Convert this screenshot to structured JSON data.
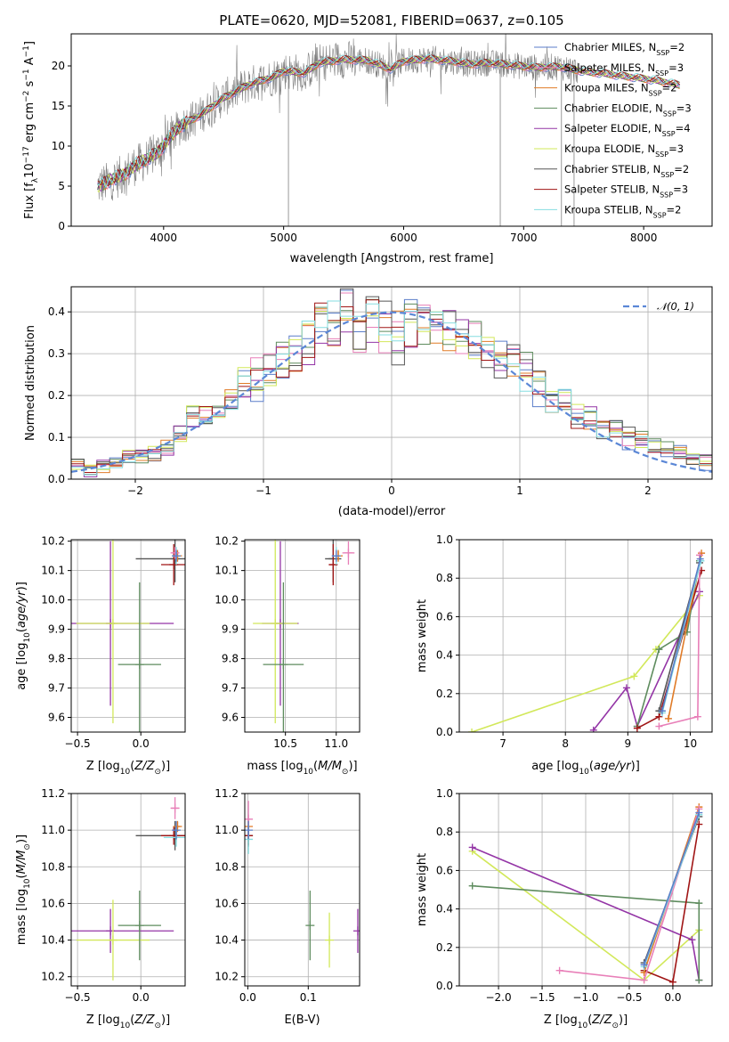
{
  "title": "PLATE=0620, MJD=52081, FIBERID=0637, z=0.105",
  "colors": {
    "Chabrier MILES": "#5b7ec9",
    "Salpeter MILES": "#e87fb8",
    "Kroupa MILES": "#e07b27",
    "Chabrier ELODIE": "#5e8c5e",
    "Salpeter ELODIE": "#9435a6",
    "Kroupa ELODIE": "#d2e85a",
    "Chabrier STELIB": "#555555",
    "Salpeter STELIB": "#a01515",
    "Kroupa STELIB": "#86dde0",
    "data": "#808080",
    "gauss": "#5b87d6"
  },
  "chart_data": [
    {
      "id": "spectrum",
      "type": "line",
      "xlabel": "wavelength [Angstrom, rest frame]",
      "ylabel": "Flux [f_λ10^-17 erg cm^-2 s^-1 A^-1]",
      "xlim": [
        3230,
        8570
      ],
      "ylim": [
        0,
        24
      ],
      "xticks": [
        4000,
        5000,
        6000,
        7000,
        8000
      ],
      "yticks": [
        0,
        5,
        10,
        15,
        20
      ],
      "grid": false,
      "legend_position": "right",
      "legend": [
        {
          "name": "Chabrier MILES",
          "nssp": 2
        },
        {
          "name": "Salpeter MILES",
          "nssp": 3
        },
        {
          "name": "Kroupa MILES",
          "nssp": 2
        },
        {
          "name": "Chabrier ELODIE",
          "nssp": 3
        },
        {
          "name": "Salpeter ELODIE",
          "nssp": 4
        },
        {
          "name": "Kroupa ELODIE",
          "nssp": 3
        },
        {
          "name": "Chabrier STELIB",
          "nssp": 2
        },
        {
          "name": "Salpeter STELIB",
          "nssp": 3
        },
        {
          "name": "Kroupa STELIB",
          "nssp": 2
        }
      ],
      "model_curve": {
        "x": [
          3450,
          3550,
          3650,
          3750,
          3850,
          3950,
          4050,
          4150,
          4300,
          4500,
          4700,
          4861,
          4900,
          5000,
          5175,
          5300,
          5500,
          5700,
          5893,
          6000,
          6200,
          6400,
          6563,
          6700,
          6900,
          7100,
          7300,
          7500,
          7700,
          7900,
          8100,
          8300
        ],
        "y": [
          5.0,
          5.6,
          6.3,
          7.5,
          8.2,
          9.3,
          11.0,
          12.6,
          13.8,
          16.0,
          17.6,
          18.4,
          18.5,
          19.4,
          19.1,
          20.4,
          20.8,
          20.7,
          19.6,
          20.6,
          20.9,
          20.6,
          20.2,
          20.4,
          20.1,
          19.8,
          19.9,
          19.3,
          19.0,
          18.6,
          18.2,
          17.6
        ]
      }
    },
    {
      "id": "residuals",
      "type": "bar",
      "xlabel": "(data-model)/error",
      "ylabel": "Normed distribution",
      "xlim": [
        -2.5,
        2.5
      ],
      "ylim": [
        0,
        0.46
      ],
      "xticks": [
        -2,
        -1,
        0,
        1,
        2
      ],
      "yticks": [
        0.0,
        0.1,
        0.2,
        0.3,
        0.4
      ],
      "grid": true,
      "legend_position": "top-right",
      "gauss_label": "N(0,1)",
      "hist_mean": [
        0.03,
        0.02,
        0.03,
        0.04,
        0.05,
        0.06,
        0.06,
        0.08,
        0.11,
        0.15,
        0.14,
        0.16,
        0.18,
        0.22,
        0.24,
        0.26,
        0.28,
        0.3,
        0.33,
        0.36,
        0.37,
        0.39,
        0.35,
        0.37,
        0.36,
        0.34,
        0.36,
        0.37,
        0.34,
        0.35,
        0.33,
        0.33,
        0.3,
        0.28,
        0.27,
        0.25,
        0.22,
        0.2,
        0.18,
        0.16,
        0.15,
        0.13,
        0.12,
        0.1,
        0.09,
        0.08,
        0.07,
        0.06,
        0.05,
        0.04
      ]
    },
    {
      "id": "age-vs-Z",
      "type": "scatter",
      "xlabel": "Z [log10(Z/Z⊙)]",
      "ylabel": "age  [log10(age/yr)]",
      "xlim": [
        -0.55,
        0.35
      ],
      "ylim": [
        9.55,
        10.205
      ],
      "xticks": [
        -0.5,
        0.0
      ],
      "yticks": [
        9.6,
        9.7,
        9.8,
        9.9,
        10.0,
        10.1,
        10.2
      ],
      "grid": true,
      "points": [
        {
          "model": "Salpeter ELODIE",
          "x": -0.24,
          "y": 9.92,
          "xerr": 0.5,
          "yerr": 0.28
        },
        {
          "model": "Kroupa ELODIE",
          "x": -0.22,
          "y": 9.92,
          "xerr": 0.29,
          "yerr": 0.34
        },
        {
          "model": "Chabrier ELODIE",
          "x": -0.01,
          "y": 9.78,
          "xerr": 0.17,
          "yerr": 0.28
        },
        {
          "model": "Chabrier STELIB",
          "x": 0.27,
          "y": 10.14,
          "xerr": 0.31,
          "yerr": 0.08
        },
        {
          "model": "Salpeter STELIB",
          "x": 0.26,
          "y": 10.12,
          "xerr": 0.1,
          "yerr": 0.07
        },
        {
          "model": "Kroupa MILES",
          "x": 0.29,
          "y": 10.15,
          "xerr": 0.02,
          "yerr": 0.02
        },
        {
          "model": "Salpeter MILES",
          "x": 0.27,
          "y": 10.16,
          "xerr": 0.03,
          "yerr": 0.02
        },
        {
          "model": "Kroupa STELIB",
          "x": 0.28,
          "y": 10.15,
          "xerr": 0.02,
          "yerr": 0.03
        },
        {
          "model": "Chabrier MILES",
          "x": 0.28,
          "y": 10.15,
          "xerr": 0.02,
          "yerr": 0.02
        }
      ]
    },
    {
      "id": "age-vs-mass",
      "type": "scatter",
      "xlabel": "mass [log10(M/M⊙)]",
      "ylabel": "",
      "xlim": [
        10.1,
        11.23
      ],
      "ylim": [
        9.55,
        10.205
      ],
      "xticks": [
        10.5,
        11.0
      ],
      "yticks": [
        9.6,
        9.7,
        9.8,
        9.9,
        10.0,
        10.1,
        10.2
      ],
      "grid": true,
      "points": [
        {
          "model": "Salpeter ELODIE",
          "x": 10.45,
          "y": 9.92,
          "xerr": 0.18,
          "yerr": 0.28
        },
        {
          "model": "Kroupa ELODIE",
          "x": 10.4,
          "y": 9.92,
          "xerr": 0.22,
          "yerr": 0.34
        },
        {
          "model": "Chabrier ELODIE",
          "x": 10.48,
          "y": 9.78,
          "xerr": 0.2,
          "yerr": 0.28
        },
        {
          "model": "Chabrier STELIB",
          "x": 10.97,
          "y": 10.14,
          "xerr": 0.08,
          "yerr": 0.08
        },
        {
          "model": "Salpeter STELIB",
          "x": 10.97,
          "y": 10.12,
          "xerr": 0.04,
          "yerr": 0.07
        },
        {
          "model": "Kroupa MILES",
          "x": 11.02,
          "y": 10.15,
          "xerr": 0.03,
          "yerr": 0.02
        },
        {
          "model": "Salpeter MILES",
          "x": 11.12,
          "y": 10.16,
          "xerr": 0.06,
          "yerr": 0.04
        },
        {
          "model": "Kroupa STELIB",
          "x": 11.0,
          "y": 10.15,
          "xerr": 0.04,
          "yerr": 0.03
        },
        {
          "model": "Chabrier MILES",
          "x": 11.0,
          "y": 10.15,
          "xerr": 0.03,
          "yerr": 0.02
        }
      ]
    },
    {
      "id": "weight-vs-age",
      "type": "line",
      "xlabel": "age  [log10(age/yr)]",
      "ylabel": "mass weight",
      "xlim": [
        6.3,
        10.35
      ],
      "ylim": [
        0,
        1
      ],
      "xticks": [
        7,
        8,
        9,
        10
      ],
      "yticks": [
        0.0,
        0.2,
        0.4,
        0.6,
        0.8,
        1.0
      ],
      "grid": true,
      "series": [
        {
          "model": "Kroupa ELODIE",
          "x": [
            6.5,
            9.1,
            9.45,
            10.15
          ],
          "y": [
            0.0,
            0.29,
            0.43,
            0.71
          ]
        },
        {
          "model": "Salpeter ELODIE",
          "x": [
            8.45,
            8.98,
            9.15,
            10.15
          ],
          "y": [
            0.01,
            0.23,
            0.03,
            0.73
          ]
        },
        {
          "model": "Chabrier ELODIE",
          "x": [
            9.15,
            9.5,
            9.95,
            10.15
          ],
          "y": [
            0.03,
            0.43,
            0.52,
            0.89
          ]
        },
        {
          "model": "Chabrier STELIB",
          "x": [
            9.5,
            10.15
          ],
          "y": [
            0.11,
            0.88
          ]
        },
        {
          "model": "Salpeter STELIB",
          "x": [
            9.15,
            9.5,
            10.18
          ],
          "y": [
            0.02,
            0.08,
            0.84
          ]
        },
        {
          "model": "Kroupa MILES",
          "x": [
            9.65,
            10.18
          ],
          "y": [
            0.07,
            0.93
          ]
        },
        {
          "model": "Salpeter MILES",
          "x": [
            9.5,
            10.12,
            10.15
          ],
          "y": [
            0.03,
            0.08,
            0.92
          ]
        },
        {
          "model": "Kroupa STELIB",
          "x": [
            9.55,
            10.17
          ],
          "y": [
            0.1,
            0.89
          ]
        },
        {
          "model": "Chabrier MILES",
          "x": [
            9.55,
            10.16
          ],
          "y": [
            0.11,
            0.9
          ]
        }
      ]
    },
    {
      "id": "mass-vs-Z",
      "type": "scatter",
      "xlabel": "Z [log10(Z/Z⊙)]",
      "ylabel": "mass [log10(M/M⊙)]",
      "xlim": [
        -0.55,
        0.35
      ],
      "ylim": [
        10.15,
        11.2
      ],
      "xticks": [
        -0.5,
        0.0
      ],
      "yticks": [
        10.2,
        10.4,
        10.6,
        10.8,
        11.0,
        11.2
      ],
      "grid": true,
      "points": [
        {
          "model": "Salpeter ELODIE",
          "x": -0.24,
          "y": 10.45,
          "xerr": 0.5,
          "yerr": 0.12
        },
        {
          "model": "Kroupa ELODIE",
          "x": -0.22,
          "y": 10.4,
          "xerr": 0.29,
          "yerr": 0.22
        },
        {
          "model": "Chabrier ELODIE",
          "x": -0.01,
          "y": 10.48,
          "xerr": 0.17,
          "yerr": 0.19
        },
        {
          "model": "Chabrier STELIB",
          "x": 0.27,
          "y": 10.97,
          "xerr": 0.31,
          "yerr": 0.08
        },
        {
          "model": "Salpeter STELIB",
          "x": 0.26,
          "y": 10.97,
          "xerr": 0.1,
          "yerr": 0.05
        },
        {
          "model": "Kroupa MILES",
          "x": 0.29,
          "y": 11.02,
          "xerr": 0.02,
          "yerr": 0.03
        },
        {
          "model": "Salpeter MILES",
          "x": 0.27,
          "y": 11.12,
          "xerr": 0.03,
          "yerr": 0.06
        },
        {
          "model": "Kroupa STELIB",
          "x": 0.28,
          "y": 10.96,
          "xerr": 0.1,
          "yerr": 0.05
        },
        {
          "model": "Chabrier MILES",
          "x": 0.28,
          "y": 11.0,
          "xerr": 0.02,
          "yerr": 0.05
        }
      ]
    },
    {
      "id": "mass-vs-EBV",
      "type": "scatter",
      "xlabel": "E(B-V)",
      "ylabel": "",
      "xlim": [
        -0.005,
        0.185
      ],
      "ylim": [
        10.15,
        11.2
      ],
      "xticks": [
        0.0,
        0.1
      ],
      "yticks": [
        10.2,
        10.4,
        10.6,
        10.8,
        11.0,
        11.2
      ],
      "grid": true,
      "points": [
        {
          "model": "Salpeter ELODIE",
          "x": 0.182,
          "y": 10.45,
          "xerr": 0.0,
          "yerr": 0.12
        },
        {
          "model": "Kroupa ELODIE",
          "x": 0.135,
          "y": 10.4,
          "xerr": 0.0,
          "yerr": 0.15
        },
        {
          "model": "Chabrier ELODIE",
          "x": 0.103,
          "y": 10.48,
          "xerr": 0.0,
          "yerr": 0.19
        },
        {
          "model": "Chabrier STELIB",
          "x": 0.001,
          "y": 10.97,
          "xerr": 0.0,
          "yerr": 0.06
        },
        {
          "model": "Salpeter STELIB",
          "x": 0.001,
          "y": 10.97,
          "xerr": 0.0,
          "yerr": 0.05
        },
        {
          "model": "Kroupa MILES",
          "x": 0.001,
          "y": 11.02,
          "xerr": 0.0,
          "yerr": 0.04
        },
        {
          "model": "Salpeter MILES",
          "x": 0.001,
          "y": 11.06,
          "xerr": 0.0,
          "yerr": 0.1
        },
        {
          "model": "Kroupa STELIB",
          "x": 0.001,
          "y": 10.95,
          "xerr": 0.0,
          "yerr": 0.08
        },
        {
          "model": "Chabrier MILES",
          "x": 0.001,
          "y": 11.0,
          "xerr": 0.0,
          "yerr": 0.05
        }
      ]
    },
    {
      "id": "weight-vs-Z",
      "type": "line",
      "xlabel": "Z [log10(Z/Z⊙)]",
      "ylabel": "mass weight",
      "xlim": [
        -2.45,
        0.45
      ],
      "ylim": [
        0,
        1
      ],
      "xticks": [
        -2.0,
        -1.5,
        -1.0,
        -0.5,
        0.0
      ],
      "yticks": [
        0.0,
        0.2,
        0.4,
        0.6,
        0.8,
        1.0
      ],
      "grid": true,
      "series": [
        {
          "model": "Kroupa ELODIE",
          "x": [
            -2.3,
            -0.33,
            0.3
          ],
          "y": [
            0.7,
            0.03,
            0.29
          ]
        },
        {
          "model": "Salpeter ELODIE",
          "x": [
            -2.3,
            0.22,
            0.3
          ],
          "y": [
            0.72,
            0.24,
            0.03
          ]
        },
        {
          "model": "Chabrier ELODIE",
          "x": [
            -2.3,
            0.3,
            0.3
          ],
          "y": [
            0.52,
            0.43,
            0.03
          ]
        },
        {
          "model": "Chabrier STELIB",
          "x": [
            -0.33,
            0.3
          ],
          "y": [
            0.12,
            0.88
          ]
        },
        {
          "model": "Salpeter STELIB",
          "x": [
            -0.33,
            0.0,
            0.3
          ],
          "y": [
            0.08,
            0.02,
            0.84
          ]
        },
        {
          "model": "Kroupa MILES",
          "x": [
            -0.33,
            0.3
          ],
          "y": [
            0.07,
            0.93
          ]
        },
        {
          "model": "Salpeter MILES",
          "x": [
            -1.3,
            -0.33,
            0.3
          ],
          "y": [
            0.08,
            0.03,
            0.92
          ]
        },
        {
          "model": "Kroupa STELIB",
          "x": [
            -0.33,
            0.3
          ],
          "y": [
            0.1,
            0.89
          ]
        },
        {
          "model": "Chabrier MILES",
          "x": [
            -0.33,
            0.3
          ],
          "y": [
            0.11,
            0.9
          ]
        }
      ]
    }
  ]
}
